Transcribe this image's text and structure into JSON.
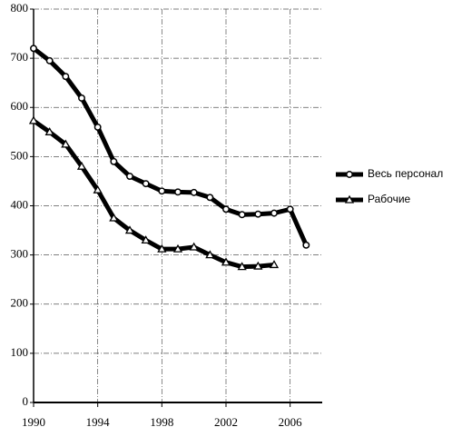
{
  "chart_data": {
    "type": "line",
    "x": [
      1990,
      1991,
      1992,
      1993,
      1994,
      1995,
      1996,
      1997,
      1998,
      1999,
      2000,
      2001,
      2002,
      2003,
      2004,
      2005,
      2006,
      2007
    ],
    "series": [
      {
        "name": "Весь персонал",
        "color": "#000000",
        "marker": "circle",
        "values": [
          720,
          695,
          663,
          619,
          560,
          490,
          460,
          445,
          430,
          428,
          427,
          417,
          393,
          382,
          383,
          385,
          393,
          320
        ]
      },
      {
        "name": "Рабочие",
        "color": "#000000",
        "marker": "triangle",
        "values": [
          573,
          550,
          525,
          480,
          432,
          375,
          350,
          330,
          312,
          312,
          316,
          300,
          285,
          276,
          277,
          280,
          null,
          null
        ]
      }
    ],
    "xlim": [
      1990,
      2008
    ],
    "xticks": [
      1990,
      1994,
      1998,
      2002,
      2006
    ],
    "ylim": [
      0,
      800
    ],
    "yticks": [
      0,
      100,
      200,
      300,
      400,
      500,
      600,
      700,
      800
    ],
    "grid": true,
    "legend": "right"
  }
}
